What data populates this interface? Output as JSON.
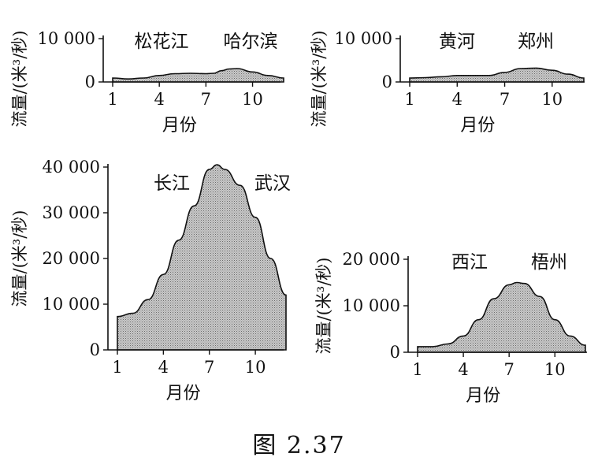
{
  "figure_caption": "图 2.37",
  "chart_data": [
    {
      "type": "area",
      "river": "松花江",
      "station": "哈尔滨",
      "xlabel": "月份",
      "ylabel": "流量/(米³/秒)",
      "ylim": [
        0,
        10000
      ],
      "yticks": [
        0,
        10000
      ],
      "ytick_labels": [
        "0",
        "10 000"
      ],
      "xticks": [
        1,
        4,
        7,
        10
      ],
      "xtick_labels": [
        "1",
        "4",
        "7",
        "10"
      ],
      "x": [
        1,
        2,
        3,
        4,
        5,
        6,
        7,
        7.5,
        8,
        8.5,
        9,
        10,
        11,
        12
      ],
      "values": [
        900,
        700,
        900,
        1500,
        1900,
        2000,
        1900,
        2000,
        2600,
        3000,
        3100,
        2300,
        1500,
        900
      ]
    },
    {
      "type": "area",
      "river": "黄河",
      "station": "郑州",
      "xlabel": "月份",
      "ylabel": "流量/(米³/秒)",
      "ylim": [
        0,
        10000
      ],
      "yticks": [
        0,
        10000
      ],
      "ytick_labels": [
        "0",
        "10 000"
      ],
      "xticks": [
        1,
        4,
        7,
        10
      ],
      "xtick_labels": [
        "1",
        "4",
        "7",
        "10"
      ],
      "x": [
        1,
        2,
        3,
        4,
        5,
        6,
        7,
        8,
        9,
        10,
        11,
        12
      ],
      "values": [
        900,
        1000,
        1200,
        1500,
        1500,
        1500,
        2200,
        3100,
        3200,
        2700,
        1800,
        900
      ]
    },
    {
      "type": "area",
      "river": "长江",
      "station": "武汉",
      "xlabel": "月份",
      "ylabel": "流量/(米³/秒)",
      "ylim": [
        0,
        40000
      ],
      "yticks": [
        0,
        10000,
        20000,
        30000,
        40000
      ],
      "ytick_labels": [
        "0",
        "10 000",
        "20 000",
        "30 000",
        "40 000"
      ],
      "xticks": [
        1,
        4,
        7,
        10
      ],
      "xtick_labels": [
        "1",
        "4",
        "7",
        "10"
      ],
      "x": [
        1,
        2,
        3,
        4,
        5,
        6,
        7,
        7.5,
        8,
        9,
        10,
        11,
        12
      ],
      "values": [
        7300,
        8000,
        11000,
        16500,
        24000,
        31500,
        39500,
        40500,
        39500,
        36000,
        29000,
        20000,
        12000
      ]
    },
    {
      "type": "area",
      "river": "西江",
      "station": "梧州",
      "xlabel": "月份",
      "ylabel": "流量/(米³/秒)",
      "ylim": [
        0,
        20000
      ],
      "yticks": [
        0,
        10000,
        20000
      ],
      "ytick_labels": [
        "0",
        "10 000",
        "20 000"
      ],
      "xticks": [
        1,
        4,
        7,
        10
      ],
      "xtick_labels": [
        "1",
        "4",
        "7",
        "10"
      ],
      "x": [
        1,
        2,
        3,
        4,
        5,
        6,
        7,
        7.5,
        8,
        9,
        10,
        11,
        12
      ],
      "values": [
        1200,
        1200,
        1800,
        3500,
        7000,
        11500,
        14500,
        15000,
        14800,
        12000,
        7000,
        3500,
        1500
      ]
    }
  ]
}
